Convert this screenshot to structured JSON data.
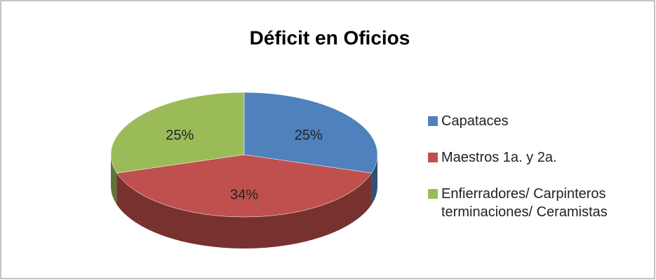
{
  "chart_data": {
    "type": "pie",
    "title": "Déficit en Oficios",
    "categories": [
      "Capataces",
      "Maestros 1a. y 2a.",
      "Enfierradores/ Carpinteros terminaciones/ Ceramistas"
    ],
    "values": [
      25,
      34,
      25
    ],
    "value_labels": [
      "25%",
      "34%",
      "25%"
    ],
    "colors": [
      "#4f81bd",
      "#c0504d",
      "#9bbb59"
    ],
    "legend": "right",
    "three_d": true
  }
}
